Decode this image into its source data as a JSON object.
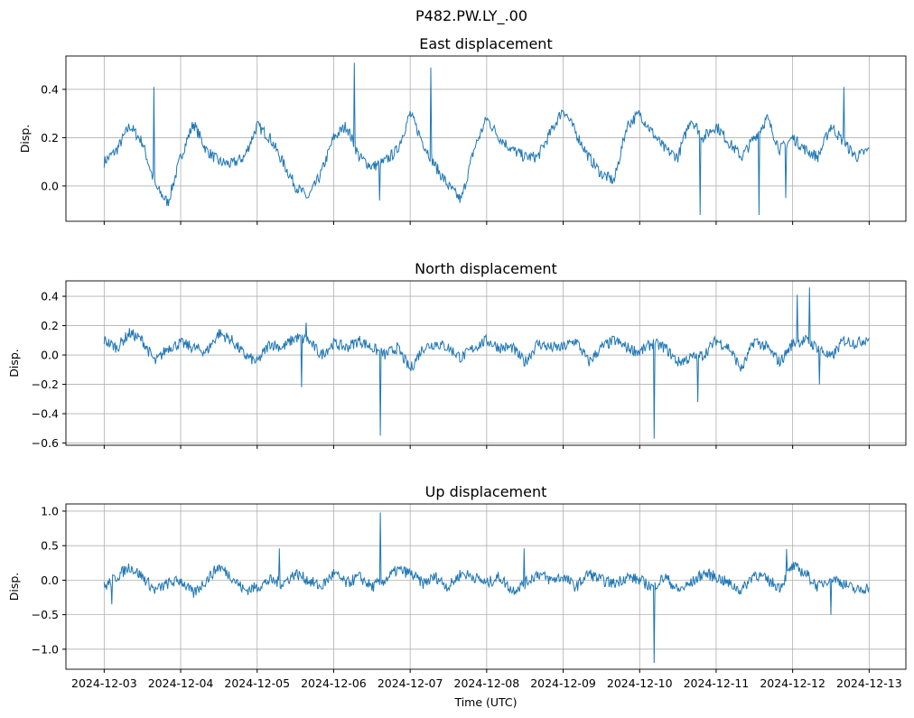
{
  "chart_data": {
    "type": "line",
    "suptitle": "P482.PW.LY_.00",
    "xlabel": "Time (UTC)",
    "x_unit": "days since 2024-12-03, 4-hour sampling",
    "xticks": [
      "2024-12-03",
      "2024-12-04",
      "2024-12-05",
      "2024-12-06",
      "2024-12-07",
      "2024-12-08",
      "2024-12-09",
      "2024-12-10",
      "2024-12-11",
      "2024-12-12",
      "2024-12-13"
    ],
    "xlim": [
      -0.5,
      10.48
    ],
    "grid": true,
    "line_color": "#1f77b4",
    "panels": [
      {
        "title": "East displacement",
        "ylabel": "Disp.",
        "ylim": [
          -0.146,
          0.538
        ],
        "yticks": [
          0.0,
          0.2,
          0.4
        ],
        "ytick_labels": [
          "0.0",
          "0.2",
          "0.4"
        ],
        "values": [
          0.1,
          0.15,
          0.25,
          0.18,
          0.0,
          -0.07,
          0.12,
          0.26,
          0.15,
          0.1,
          0.09,
          0.12,
          0.25,
          0.2,
          0.1,
          0.0,
          -0.05,
          0.05,
          0.2,
          0.25,
          0.12,
          0.08,
          0.1,
          0.15,
          0.3,
          0.18,
          0.08,
          0.0,
          -0.06,
          0.15,
          0.28,
          0.2,
          0.15,
          0.12,
          0.12,
          0.22,
          0.32,
          0.22,
          0.12,
          0.05,
          0.02,
          0.25,
          0.3,
          0.22,
          0.15,
          0.12,
          0.28,
          0.2,
          0.25,
          0.18,
          0.12,
          0.2,
          0.28,
          0.15,
          0.2,
          0.15,
          0.12,
          0.25,
          0.18,
          0.12,
          0.15
        ],
        "spikes": [
          [
            0.65,
            0.41
          ],
          [
            3.27,
            0.51
          ],
          [
            3.6,
            -0.06
          ],
          [
            4.27,
            0.49
          ],
          [
            7.79,
            -0.12
          ],
          [
            8.56,
            -0.12
          ],
          [
            8.91,
            -0.05
          ],
          [
            9.67,
            0.41
          ]
        ]
      },
      {
        "title": "North displacement",
        "ylabel": "Disp.",
        "ylim": [
          -0.615,
          0.505
        ],
        "yticks": [
          -0.6,
          -0.4,
          -0.2,
          0.0,
          0.2,
          0.4
        ],
        "ytick_labels": [
          "−0.6",
          "−0.4",
          "−0.2",
          "0.0",
          "0.2",
          "0.4"
        ],
        "values": [
          0.1,
          0.05,
          0.15,
          0.1,
          -0.05,
          0.05,
          0.08,
          0.05,
          0.02,
          0.15,
          0.1,
          0.0,
          -0.05,
          0.08,
          0.05,
          0.12,
          0.1,
          0.0,
          0.08,
          0.05,
          0.1,
          0.05,
          0.0,
          0.05,
          -0.1,
          0.05,
          0.08,
          0.05,
          -0.02,
          0.05,
          0.1,
          0.05,
          0.05,
          -0.05,
          0.08,
          0.05,
          0.05,
          0.1,
          -0.05,
          0.05,
          0.1,
          0.05,
          0.02,
          0.08,
          0.05,
          -0.05,
          -0.02,
          0.0,
          0.1,
          0.05,
          -0.1,
          0.1,
          0.05,
          -0.05,
          0.08,
          0.1,
          0.05,
          -0.02,
          0.1,
          0.08,
          0.12
        ],
        "spikes": [
          [
            2.58,
            -0.22
          ],
          [
            2.64,
            0.22
          ],
          [
            3.61,
            -0.55
          ],
          [
            7.19,
            -0.57
          ],
          [
            7.76,
            -0.32
          ],
          [
            9.06,
            0.41
          ],
          [
            9.22,
            0.46
          ],
          [
            9.35,
            -0.2
          ]
        ]
      },
      {
        "title": "Up displacement",
        "ylabel": "Disp.",
        "ylim": [
          -1.29,
          1.104
        ],
        "yticks": [
          -1.0,
          -0.5,
          0.0,
          0.5,
          1.0
        ],
        "ytick_labels": [
          "−1.0",
          "−0.5",
          "0.0",
          "0.5",
          "1.0"
        ],
        "values": [
          -0.1,
          0.05,
          0.2,
          0.05,
          -0.15,
          -0.05,
          0.0,
          -0.2,
          0.0,
          0.2,
          0.05,
          -0.15,
          -0.1,
          0.0,
          -0.05,
          0.1,
          0.0,
          -0.1,
          0.1,
          -0.05,
          0.05,
          -0.1,
          0.0,
          0.15,
          0.1,
          -0.05,
          0.05,
          -0.1,
          0.1,
          0.05,
          -0.05,
          0.05,
          -0.15,
          -0.05,
          0.1,
          0.0,
          0.05,
          -0.1,
          0.1,
          0.0,
          -0.05,
          0.05,
          0.0,
          -0.1,
          0.05,
          -0.15,
          -0.05,
          0.1,
          0.05,
          -0.05,
          -0.15,
          0.1,
          0.0,
          -0.1,
          0.2,
          0.1,
          -0.1,
          0.05,
          -0.05,
          -0.15,
          -0.1
        ],
        "spikes": [
          [
            0.1,
            -0.35
          ],
          [
            2.29,
            0.46
          ],
          [
            3.61,
            0.98
          ],
          [
            5.49,
            0.46
          ],
          [
            7.19,
            -1.2
          ],
          [
            8.92,
            0.45
          ],
          [
            9.5,
            -0.5
          ]
        ]
      }
    ]
  }
}
